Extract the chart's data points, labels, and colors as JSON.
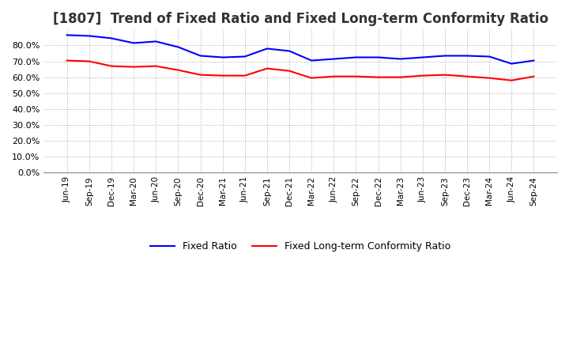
{
  "title": "[1807]  Trend of Fixed Ratio and Fixed Long-term Conformity Ratio",
  "x_labels": [
    "Jun-19",
    "Sep-19",
    "Dec-19",
    "Mar-20",
    "Jun-20",
    "Sep-20",
    "Dec-20",
    "Mar-21",
    "Jun-21",
    "Sep-21",
    "Dec-21",
    "Mar-22",
    "Jun-22",
    "Sep-22",
    "Dec-22",
    "Mar-23",
    "Jun-23",
    "Sep-23",
    "Dec-23",
    "Mar-24",
    "Jun-24",
    "Sep-24"
  ],
  "fixed_ratio": [
    86.5,
    86.0,
    84.5,
    81.5,
    82.5,
    79.0,
    73.5,
    72.5,
    73.0,
    78.0,
    76.5,
    70.5,
    71.5,
    72.5,
    72.5,
    71.5,
    72.5,
    73.5,
    73.5,
    73.0,
    68.5,
    70.5
  ],
  "fixed_lt_ratio": [
    70.5,
    70.0,
    67.0,
    66.5,
    67.0,
    64.5,
    61.5,
    61.0,
    61.0,
    65.5,
    64.0,
    59.5,
    60.5,
    60.5,
    60.0,
    60.0,
    61.0,
    61.5,
    60.5,
    59.5,
    58.0,
    60.5
  ],
  "fixed_ratio_color": "#0000ff",
  "fixed_lt_ratio_color": "#ff0000",
  "ylim": [
    0,
    90
  ],
  "yticks": [
    0.0,
    10.0,
    20.0,
    30.0,
    40.0,
    50.0,
    60.0,
    70.0,
    80.0
  ],
  "background_color": "#ffffff",
  "grid_color": "#aaaaaa",
  "title_fontsize": 12,
  "legend_fixed_ratio": "Fixed Ratio",
  "legend_fixed_lt_ratio": "Fixed Long-term Conformity Ratio"
}
